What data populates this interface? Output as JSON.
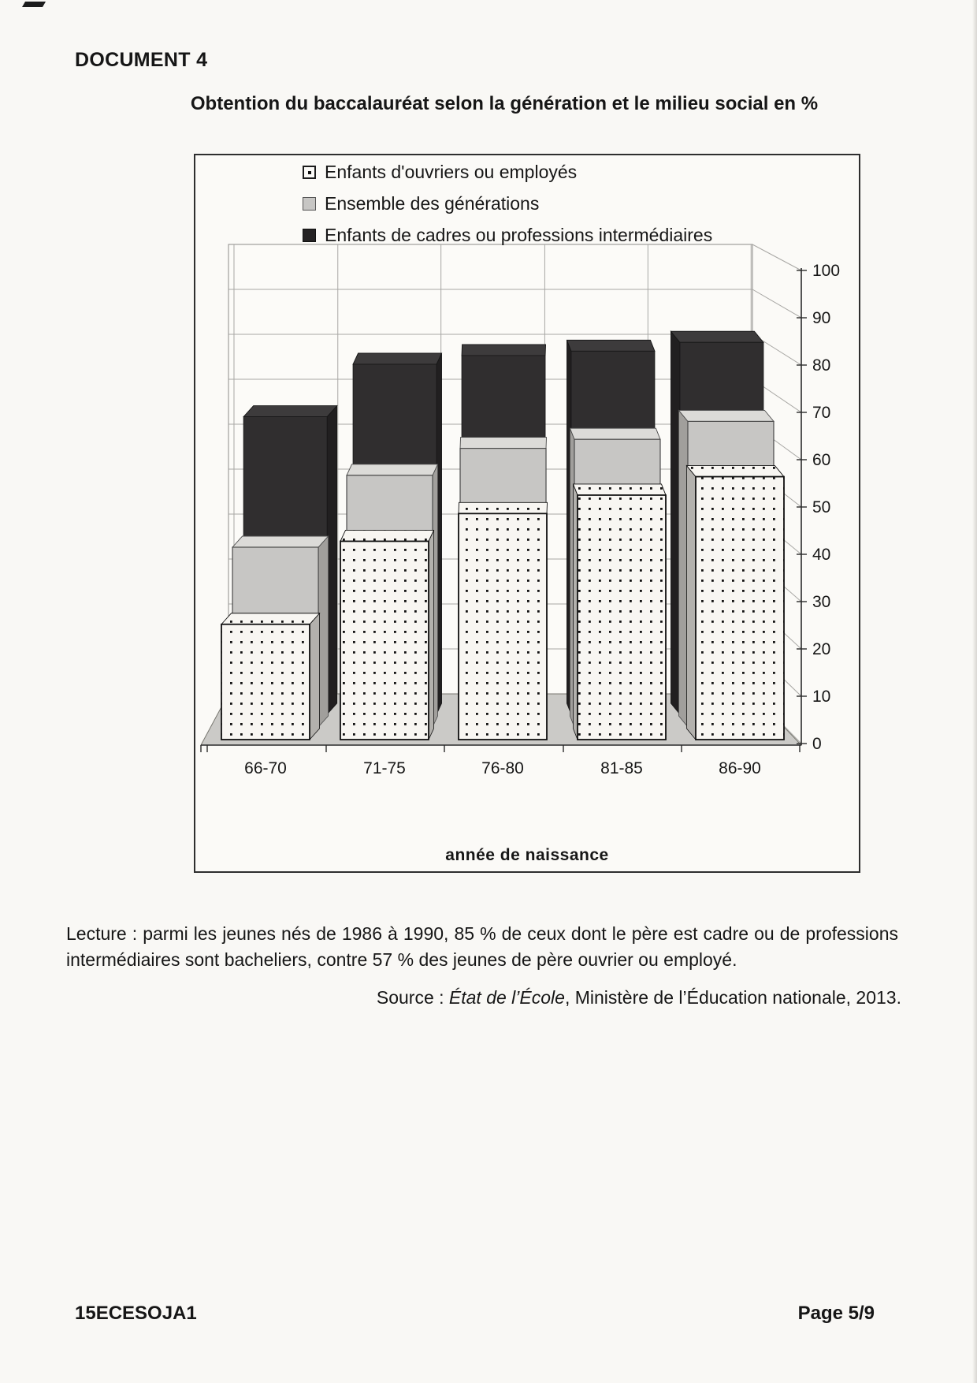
{
  "doc": {
    "label": "DOCUMENT 4",
    "title": "Obtention du baccalauréat selon la génération et le milieu social en %",
    "lecture": "Lecture : parmi les jeunes nés de 1986 à 1990, 85 % de ceux dont le père est cadre ou de professions intermédiaires sont bacheliers, contre 57 % des jeunes de père ouvrier ou employé.",
    "source_prefix": "Source : ",
    "source_italic": "État de l’École",
    "source_suffix": ", Ministère de l’Éducation nationale, 2013.",
    "footer_left": "15ECESOJA1",
    "footer_right": "Page 5/9"
  },
  "chart_data": {
    "type": "bar",
    "projection": "3d-perspective",
    "title": "Obtention du baccalauréat selon la génération et le milieu social en %",
    "categories": [
      "66-70",
      "71-75",
      "76-80",
      "81-85",
      "86-90"
    ],
    "series": [
      {
        "name": "Enfants d'ouvriers ou employés",
        "style": "white-dotted",
        "values": [
          25,
          43,
          49,
          53,
          57
        ]
      },
      {
        "name": "Ensemble des générations",
        "style": "light-gray",
        "values": [
          40,
          56,
          62,
          64,
          68
        ]
      },
      {
        "name": "Enfants de cadres ou professions intermédiaires",
        "style": "black",
        "values": [
          68,
          80,
          82,
          83,
          85
        ]
      }
    ],
    "xlabel": "année de naissance",
    "ylabel": "",
    "ylim": [
      0,
      100
    ],
    "yticks": [
      0,
      10,
      20,
      30,
      40,
      50,
      60,
      70,
      80,
      90,
      100
    ],
    "grid": true,
    "legend_position": "top-left-inside",
    "colors": {
      "black_series": "#302e2f",
      "gray_series": "#c7c6c4",
      "dotted_series_bg": "#f8f6f2",
      "dot": "#111111",
      "floor": "#cbcac7",
      "gridline": "#a8a7a4",
      "axis": "#2b2b2b"
    }
  }
}
